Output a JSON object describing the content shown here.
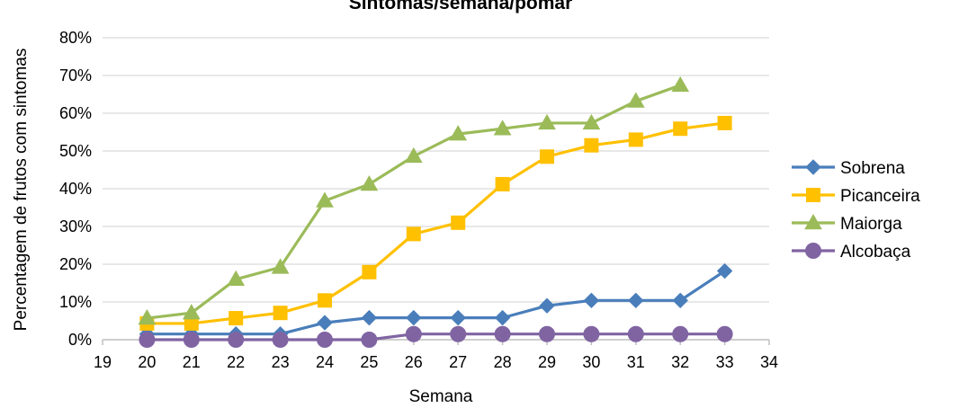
{
  "chart_data": {
    "type": "line",
    "title": "Sintomas/semana/pomar",
    "xlabel": "Semana",
    "ylabel": "Percentagem de frutos com sintomas",
    "xlim": [
      19,
      34
    ],
    "ylim": [
      0,
      0.8
    ],
    "x_ticks": [
      "19",
      "20",
      "21",
      "22",
      "23",
      "24",
      "25",
      "26",
      "27",
      "28",
      "29",
      "30",
      "31",
      "32",
      "33",
      "34"
    ],
    "y_ticks": [
      "0%",
      "10%",
      "20%",
      "30%",
      "40%",
      "50%",
      "60%",
      "70%",
      "80%"
    ],
    "grid": "horizontal",
    "legend_position": "right",
    "series": [
      {
        "name": "Sobrena",
        "color": "#4A7EBB",
        "marker": "diamond",
        "x": [
          20,
          21,
          22,
          23,
          24,
          25,
          26,
          27,
          28,
          29,
          30,
          31,
          32,
          33
        ],
        "values": [
          0.015,
          0.015,
          0.015,
          0.015,
          0.045,
          0.058,
          0.058,
          0.058,
          0.058,
          0.09,
          0.104,
          0.104,
          0.104,
          0.182
        ]
      },
      {
        "name": "Picanceira",
        "color": "#FFC000",
        "marker": "square",
        "x": [
          20,
          21,
          22,
          23,
          24,
          25,
          26,
          27,
          28,
          29,
          30,
          31,
          32,
          33
        ],
        "values": [
          0.043,
          0.043,
          0.057,
          0.071,
          0.104,
          0.179,
          0.28,
          0.31,
          0.412,
          0.485,
          0.515,
          0.53,
          0.559,
          0.574
        ]
      },
      {
        "name": "Maiorga",
        "color": "#9BBB59",
        "marker": "triangle",
        "x": [
          20,
          21,
          22,
          23,
          24,
          25,
          26,
          27,
          28,
          29,
          30,
          31,
          32
        ],
        "values": [
          0.057,
          0.071,
          0.16,
          0.192,
          0.368,
          0.412,
          0.486,
          0.545,
          0.559,
          0.574,
          0.574,
          0.632,
          0.674
        ]
      },
      {
        "name": "Alcobaça",
        "color": "#8064A2",
        "marker": "circle",
        "x": [
          20,
          21,
          22,
          23,
          24,
          25,
          26,
          27,
          28,
          29,
          30,
          31,
          32,
          33
        ],
        "values": [
          0.0,
          0.0,
          0.0,
          0.0,
          0.0,
          0.0,
          0.015,
          0.015,
          0.015,
          0.015,
          0.015,
          0.015,
          0.015,
          0.015
        ]
      }
    ]
  }
}
